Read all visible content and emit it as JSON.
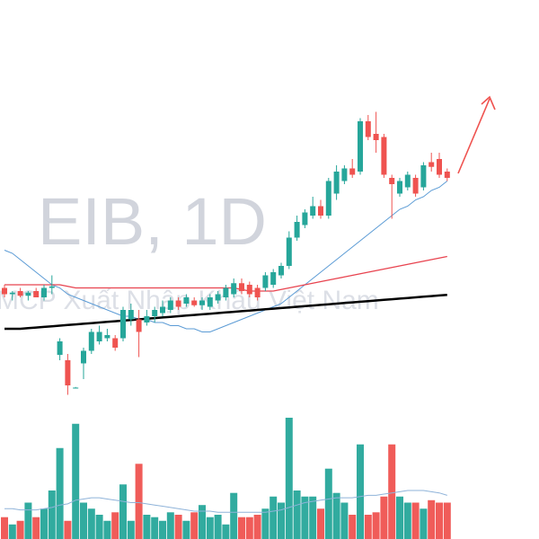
{
  "chart_data": {
    "type": "candlestick",
    "title": "EIB, 1D",
    "subtitle": "MCP Xuất Nhập Khẩu Việt Nam",
    "up_color": "#26a69a",
    "down_color": "#ef5350",
    "ylim": [
      0,
      100
    ],
    "volume_ylim": [
      0,
      100
    ],
    "open": [
      37,
      35,
      36,
      34.5,
      36,
      34,
      37,
      15.7,
      14,
      5,
      13,
      17,
      20,
      21,
      21,
      21,
      27,
      27,
      26,
      28,
      29,
      30,
      33,
      32,
      33,
      31.5,
      31,
      33,
      34,
      35,
      38.5,
      38,
      37,
      37,
      38,
      41,
      44,
      53,
      57,
      60,
      63,
      60,
      67,
      71,
      75,
      74,
      90,
      86,
      85,
      72,
      67,
      69,
      72,
      69,
      77,
      78,
      74
    ],
    "high": [
      38,
      36,
      37,
      36,
      37,
      38,
      41,
      21,
      16,
      5.5,
      18,
      24,
      25,
      24,
      22,
      31,
      32,
      30,
      30,
      31,
      33,
      34,
      34,
      35,
      34,
      34,
      35,
      36,
      38,
      40,
      40,
      39,
      38,
      42,
      43,
      45,
      55,
      60,
      62,
      66,
      65,
      72,
      76,
      76,
      78,
      91,
      92,
      93,
      86,
      73,
      72,
      74,
      73,
      77,
      80,
      80,
      75
    ],
    "low": [
      34,
      33,
      34,
      33,
      34,
      33,
      35,
      14,
      3,
      5,
      8,
      16,
      19,
      20,
      17,
      20,
      25,
      15,
      25,
      26,
      28,
      29,
      30,
      31,
      31,
      30,
      30,
      32,
      33,
      34,
      35,
      34,
      33,
      36,
      37,
      40,
      43,
      52,
      56,
      59,
      59,
      59,
      65,
      70,
      72,
      73,
      84,
      80,
      72,
      59,
      66,
      68,
      66,
      68,
      74,
      72,
      71
    ],
    "close": [
      35,
      35.5,
      34.5,
      35.5,
      34,
      37,
      37.5,
      20,
      6,
      5.3,
      17,
      23,
      23,
      22,
      18,
      30,
      30,
      23,
      28,
      30,
      31,
      33,
      31,
      34,
      31.5,
      33,
      34,
      35,
      37,
      38.5,
      36,
      35,
      34,
      41,
      42,
      44,
      53,
      58,
      61,
      63,
      60,
      71,
      74,
      75,
      73,
      90,
      85,
      84,
      73,
      70,
      71,
      73,
      67,
      76,
      75.5,
      73,
      72
    ],
    "volume": [
      18,
      12,
      15,
      30,
      18,
      25,
      40,
      75,
      15,
      95,
      30,
      25,
      20,
      15,
      22,
      45,
      15,
      62,
      20,
      18,
      15,
      22,
      20,
      15,
      22,
      28,
      18,
      20,
      12,
      38,
      18,
      18,
      20,
      25,
      35,
      30,
      100,
      40,
      35,
      35,
      25,
      58,
      38,
      30,
      20,
      78,
      20,
      22,
      35,
      78,
      35,
      30,
      30,
      25,
      32,
      30,
      30
    ],
    "lines": [
      {
        "color": "#5b9bd5",
        "width": 1,
        "values": [
          49,
          48,
          46,
          44,
          42,
          40,
          38,
          37,
          35,
          34,
          33,
          32,
          31,
          30,
          29,
          28,
          28,
          27,
          27,
          26,
          26,
          25,
          25,
          24,
          24,
          23,
          23,
          24,
          25,
          26,
          27,
          28,
          29,
          30,
          31,
          32,
          34,
          36,
          38,
          40,
          42,
          44,
          46,
          48,
          50,
          52,
          54,
          56,
          58,
          60,
          62,
          63,
          65,
          66,
          68,
          69,
          71
        ]
      },
      {
        "color": "#e8434f",
        "width": 1.3,
        "values": [
          38,
          38,
          38,
          38,
          38,
          38,
          38,
          38,
          37.5,
          37,
          37,
          37,
          37,
          37,
          37,
          37,
          37,
          37,
          37,
          37,
          37,
          37,
          37,
          37,
          37,
          37,
          37,
          37,
          37,
          37,
          36.5,
          36,
          36,
          36,
          36,
          36.5,
          37,
          37.5,
          38,
          38.5,
          39,
          39.5,
          40,
          40.5,
          41,
          41.5,
          42,
          42.5,
          43,
          43.5,
          44,
          44.5,
          45,
          45.5,
          46,
          46.5,
          47
        ]
      },
      {
        "color": "#000000",
        "width": 2.5,
        "values": [
          24,
          24,
          24,
          24.2,
          24.4,
          24.6,
          24.8,
          25,
          25.2,
          25.4,
          25.6,
          25.8,
          26,
          26.2,
          26.4,
          26.6,
          26.8,
          27,
          27.2,
          27.4,
          27.6,
          27.8,
          28,
          28.2,
          28.4,
          28.6,
          28.8,
          29,
          29.2,
          29.4,
          29.6,
          29.8,
          30,
          30.2,
          30.4,
          30.6,
          30.8,
          31,
          31.2,
          31.4,
          31.6,
          31.8,
          32,
          32.2,
          32.4,
          32.6,
          32.8,
          33,
          33.2,
          33.4,
          33.6,
          33.8,
          34,
          34.2,
          34.4,
          34.6,
          34.8
        ]
      }
    ],
    "volume_ma": {
      "color": "#8fb3d9",
      "values": [
        25,
        25,
        24,
        24,
        24,
        25,
        26,
        28,
        29,
        32,
        33,
        34,
        34,
        33,
        32,
        31,
        30,
        30,
        29,
        28,
        27,
        26,
        25,
        24,
        23,
        23,
        23,
        22,
        22,
        22,
        22,
        22,
        22,
        22,
        23,
        24,
        26,
        28,
        30,
        31,
        32,
        33,
        34,
        34,
        34,
        35,
        36,
        36,
        37,
        38,
        39,
        40,
        40,
        40,
        39,
        38,
        36
      ]
    }
  }
}
